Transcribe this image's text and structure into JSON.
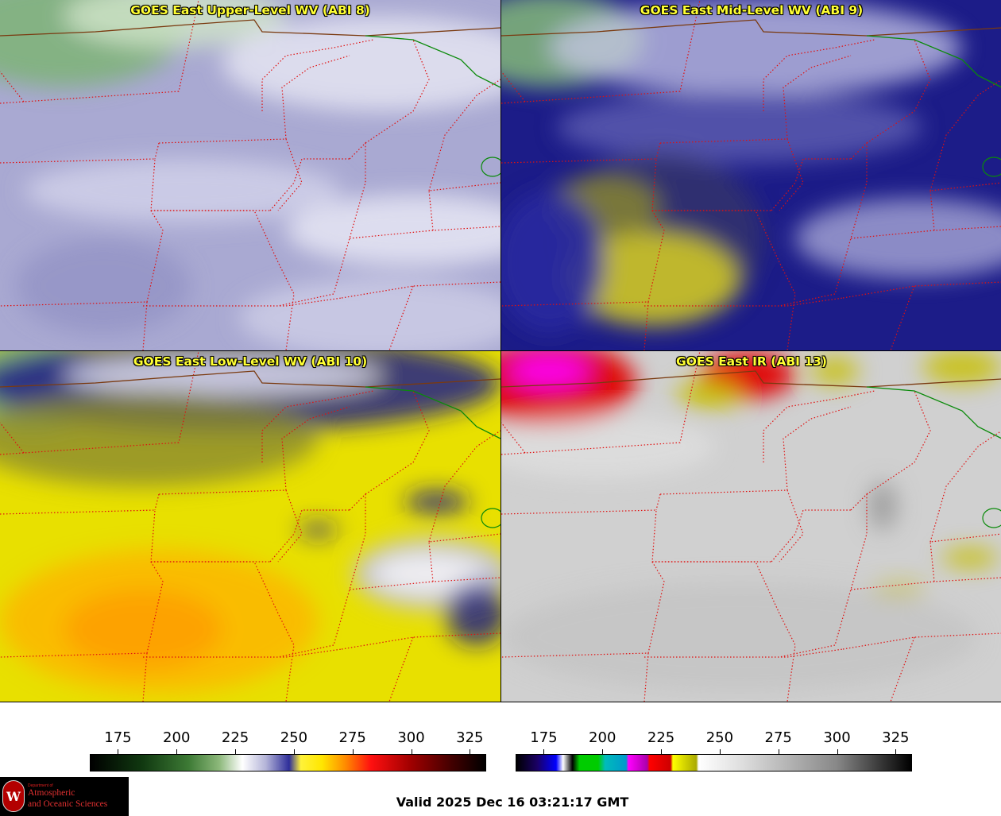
{
  "panels": [
    {
      "title": "GOES East Upper-Level WV (ABI 8)",
      "scheme": "upper"
    },
    {
      "title": "GOES East Mid-Level WV (ABI 9)",
      "scheme": "mid"
    },
    {
      "title": "GOES East Low-Level WV (ABI 10)",
      "scheme": "low"
    },
    {
      "title": "GOES East IR (ABI 13)",
      "scheme": "ir"
    }
  ],
  "colorbars": [
    {
      "name": "wv-colorbar",
      "range": [
        163,
        332
      ],
      "ticks": [
        "175",
        "200",
        "225",
        "250",
        "275",
        "300",
        "325"
      ],
      "stops": [
        [
          163,
          "#000000"
        ],
        [
          185,
          "#103810"
        ],
        [
          205,
          "#3d7a35"
        ],
        [
          218,
          "#8cb87a"
        ],
        [
          228,
          "#ffffff"
        ],
        [
          238,
          "#b4b4d8"
        ],
        [
          248,
          "#2e2e9a"
        ],
        [
          253,
          "#fff23a"
        ],
        [
          262,
          "#ffe600"
        ],
        [
          272,
          "#ff8c00"
        ],
        [
          283,
          "#ff1010"
        ],
        [
          300,
          "#a00000"
        ],
        [
          318,
          "#400000"
        ],
        [
          332,
          "#000000"
        ]
      ]
    },
    {
      "name": "ir-colorbar",
      "range": [
        163,
        332
      ],
      "ticks": [
        "175",
        "200",
        "225",
        "250",
        "275",
        "300",
        "325"
      ],
      "stops": [
        [
          163,
          "#000000"
        ],
        [
          172,
          "#1a0066"
        ],
        [
          180,
          "#0000ff"
        ],
        [
          183,
          "#ffffff"
        ],
        [
          187,
          "#000000"
        ],
        [
          190,
          "#00cc00"
        ],
        [
          198,
          "#00cc00"
        ],
        [
          201,
          "#00bbbb"
        ],
        [
          210,
          "#0099cc"
        ],
        [
          211,
          "#ff00ff"
        ],
        [
          219,
          "#aa00aa"
        ],
        [
          220,
          "#ff0000"
        ],
        [
          229,
          "#cc0000"
        ],
        [
          230,
          "#ffff00"
        ],
        [
          240,
          "#aaaa00"
        ],
        [
          241,
          "#ffffff"
        ],
        [
          260,
          "#dddddd"
        ],
        [
          300,
          "#888888"
        ],
        [
          332,
          "#000000"
        ]
      ]
    }
  ],
  "logo": {
    "line1": "Department of",
    "line2": "Atmospheric",
    "line3": "and Oceanic Sciences",
    "mark": "W"
  },
  "valid_time": "Valid 2025 Dec 16 03:21:17 GMT",
  "colors": {
    "state_borders": "#e01010",
    "national_border": "#7a3a10",
    "lake_outline": "#0a8a0a",
    "title_text": "#ffff33"
  }
}
